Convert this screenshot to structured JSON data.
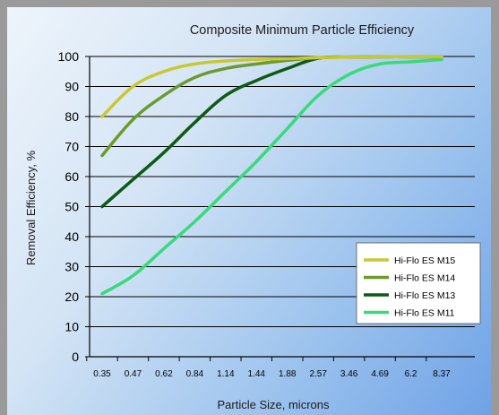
{
  "chart_data": {
    "type": "line",
    "title": "Composite Minimum Particle Efficiency",
    "xlabel": "Particle Size, microns",
    "ylabel": "Removal Efficiency, %",
    "categories": [
      "0.35",
      "0.47",
      "0.62",
      "0.84",
      "1.14",
      "1.44",
      "1.88",
      "2.57",
      "3.46",
      "4.69",
      "6.2",
      "8.37"
    ],
    "ylim": [
      0,
      100
    ],
    "yticks": [
      0,
      10,
      20,
      30,
      40,
      50,
      60,
      70,
      80,
      90,
      100
    ],
    "grid": true,
    "legend_position": "bottom-right",
    "series": [
      {
        "name": "Hi-Flo ES M15",
        "color": "#c8c830",
        "values": [
          80,
          90,
          95,
          97.5,
          98.5,
          99,
          99.3,
          99.6,
          99.8,
          99.9,
          99.9,
          99.9
        ]
      },
      {
        "name": "Hi-Flo ES M14",
        "color": "#6b9a2e",
        "values": [
          67,
          79,
          87,
          93,
          96,
          97.5,
          98.7,
          99.6,
          99.8,
          99.9,
          99.9,
          99.9
        ]
      },
      {
        "name": "Hi-Flo ES M13",
        "color": "#0e5a14",
        "values": [
          50,
          59,
          68,
          78,
          87,
          92,
          96,
          99.4,
          99.8,
          99.9,
          99.9,
          99.9
        ]
      },
      {
        "name": "Hi-Flo ES M11",
        "color": "#3ad97a",
        "values": [
          21,
          27,
          36,
          45,
          55,
          65,
          76,
          87,
          94,
          97.5,
          98.2,
          99
        ]
      }
    ]
  }
}
